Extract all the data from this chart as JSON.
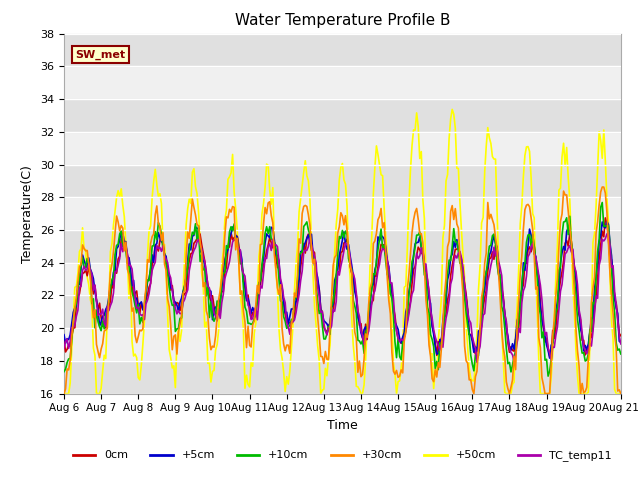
{
  "title": "Water Temperature Profile B",
  "xlabel": "Time",
  "ylabel": "Temperature(C)",
  "ylim": [
    16,
    38
  ],
  "xlim": [
    0,
    360
  ],
  "x_tick_labels": [
    "Aug 6",
    "Aug 7",
    "Aug 8",
    "Aug 9",
    "Aug 10",
    "Aug 11",
    "Aug 12",
    "Aug 13",
    "Aug 14",
    "Aug 15",
    "Aug 16",
    "Aug 17",
    "Aug 18",
    "Aug 19",
    "Aug 20",
    "Aug 21"
  ],
  "x_tick_positions": [
    0,
    24,
    48,
    72,
    96,
    120,
    144,
    168,
    192,
    216,
    240,
    264,
    288,
    312,
    336,
    360
  ],
  "annotation_text": "SW_met",
  "annotation_bg": "#FFFFCC",
  "annotation_border": "#8B0000",
  "fig_bg": "#FFFFFF",
  "plot_bg": "#F0F0F0",
  "band_color": "#E0E0E0",
  "series": {
    "0cm": {
      "color": "#CC0000",
      "lw": 1.2
    },
    "+5cm": {
      "color": "#0000CC",
      "lw": 1.2
    },
    "+10cm": {
      "color": "#00BB00",
      "lw": 1.2
    },
    "+30cm": {
      "color": "#FF8800",
      "lw": 1.2
    },
    "+50cm": {
      "color": "#FFFF00",
      "lw": 1.2
    },
    "TC_temp11": {
      "color": "#AA00AA",
      "lw": 1.2
    }
  },
  "legend_order": [
    "0cm",
    "+5cm",
    "+10cm",
    "+30cm",
    "+50cm",
    "TC_temp11"
  ]
}
